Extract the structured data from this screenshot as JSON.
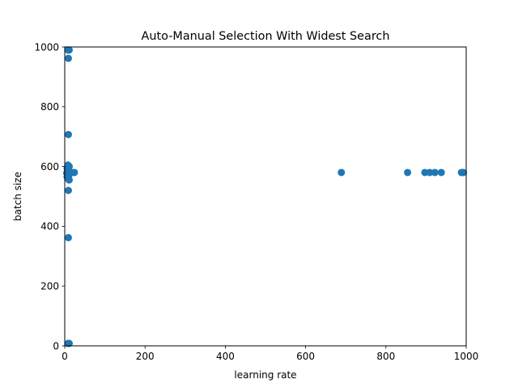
{
  "chart_data": {
    "type": "scatter",
    "title": "Auto-Manual Selection With Widest Search",
    "xlabel": "learning rate",
    "ylabel": "batch size",
    "xlim": [
      0,
      1000
    ],
    "ylim": [
      0,
      1000
    ],
    "xticks": [
      0,
      200,
      400,
      600,
      800,
      1000
    ],
    "yticks": [
      0,
      200,
      400,
      600,
      800,
      1000
    ],
    "xtick_labels": [
      "0",
      "200",
      "400",
      "600",
      "800",
      "1000"
    ],
    "ytick_labels": [
      "0",
      "200",
      "400",
      "600",
      "800",
      "1000"
    ],
    "grid": false,
    "color": "#1f77b4",
    "series": [
      {
        "points": [
          {
            "x": 8,
            "y": 990
          },
          {
            "x": 11,
            "y": 990
          },
          {
            "x": 9,
            "y": 962
          },
          {
            "x": 9,
            "y": 707
          },
          {
            "x": 8,
            "y": 605
          },
          {
            "x": 11,
            "y": 600
          },
          {
            "x": 6,
            "y": 595
          },
          {
            "x": 9,
            "y": 590
          },
          {
            "x": 7,
            "y": 584
          },
          {
            "x": 14,
            "y": 580
          },
          {
            "x": 18,
            "y": 580
          },
          {
            "x": 24,
            "y": 580
          },
          {
            "x": 5,
            "y": 578
          },
          {
            "x": 8,
            "y": 574
          },
          {
            "x": 10,
            "y": 570
          },
          {
            "x": 6,
            "y": 565
          },
          {
            "x": 9,
            "y": 558
          },
          {
            "x": 11,
            "y": 555
          },
          {
            "x": 9,
            "y": 520
          },
          {
            "x": 9,
            "y": 362
          },
          {
            "x": 8,
            "y": 8
          },
          {
            "x": 11,
            "y": 8
          },
          {
            "x": 689,
            "y": 580
          },
          {
            "x": 854,
            "y": 580
          },
          {
            "x": 897,
            "y": 580
          },
          {
            "x": 909,
            "y": 580
          },
          {
            "x": 922,
            "y": 580
          },
          {
            "x": 938,
            "y": 580
          },
          {
            "x": 988,
            "y": 580
          },
          {
            "x": 991,
            "y": 580
          },
          {
            "x": 993,
            "y": 580
          }
        ]
      }
    ]
  }
}
